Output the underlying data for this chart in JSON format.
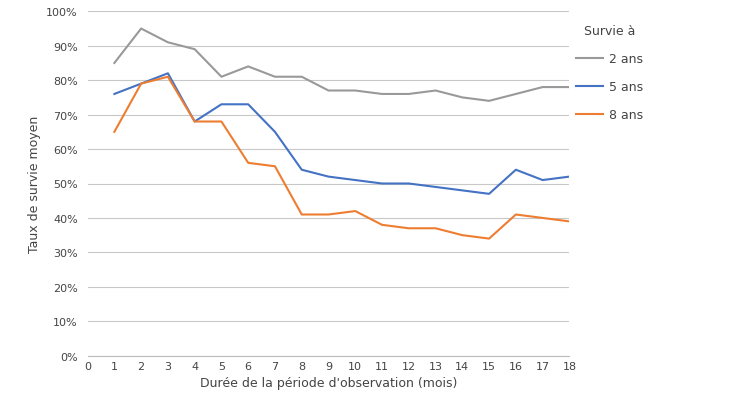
{
  "x": [
    1,
    2,
    3,
    4,
    5,
    6,
    7,
    8,
    9,
    10,
    11,
    12,
    13,
    14,
    15,
    16,
    17,
    18
  ],
  "survie_2ans": [
    0.85,
    0.95,
    0.91,
    0.89,
    0.81,
    0.84,
    0.81,
    0.81,
    0.77,
    0.77,
    0.76,
    0.76,
    0.77,
    0.75,
    0.74,
    0.76,
    0.78,
    0.78
  ],
  "survie_5ans": [
    0.76,
    0.79,
    0.82,
    0.68,
    0.73,
    0.73,
    0.65,
    0.54,
    0.52,
    0.51,
    0.5,
    0.5,
    0.49,
    0.48,
    0.47,
    0.54,
    0.51,
    0.52
  ],
  "survie_8ans": [
    0.65,
    0.79,
    0.81,
    0.68,
    0.68,
    0.56,
    0.55,
    0.41,
    0.41,
    0.42,
    0.38,
    0.37,
    0.37,
    0.35,
    0.34,
    0.41,
    0.4,
    0.39
  ],
  "color_2ans": "#999999",
  "color_5ans": "#4472C4",
  "color_8ans": "#ED7D31",
  "xlabel": "Durée de la période d'observation (mois)",
  "ylabel": "Taux de survie moyen",
  "legend_title": "Survie à",
  "legend_labels": [
    "2 ans",
    "5 ans",
    "8 ans"
  ],
  "xlim": [
    0,
    18
  ],
  "ylim": [
    0.0,
    1.0
  ],
  "yticks": [
    0.0,
    0.1,
    0.2,
    0.3,
    0.4,
    0.5,
    0.6,
    0.7,
    0.8,
    0.9,
    1.0
  ],
  "xticks": [
    0,
    1,
    2,
    3,
    4,
    5,
    6,
    7,
    8,
    9,
    10,
    11,
    12,
    13,
    14,
    15,
    16,
    17,
    18
  ],
  "background_color": "#ffffff",
  "grid_color": "#c8c8c8",
  "linewidth": 1.5,
  "tick_fontsize": 8,
  "label_fontsize": 9,
  "legend_fontsize": 9,
  "legend_title_fontsize": 9
}
